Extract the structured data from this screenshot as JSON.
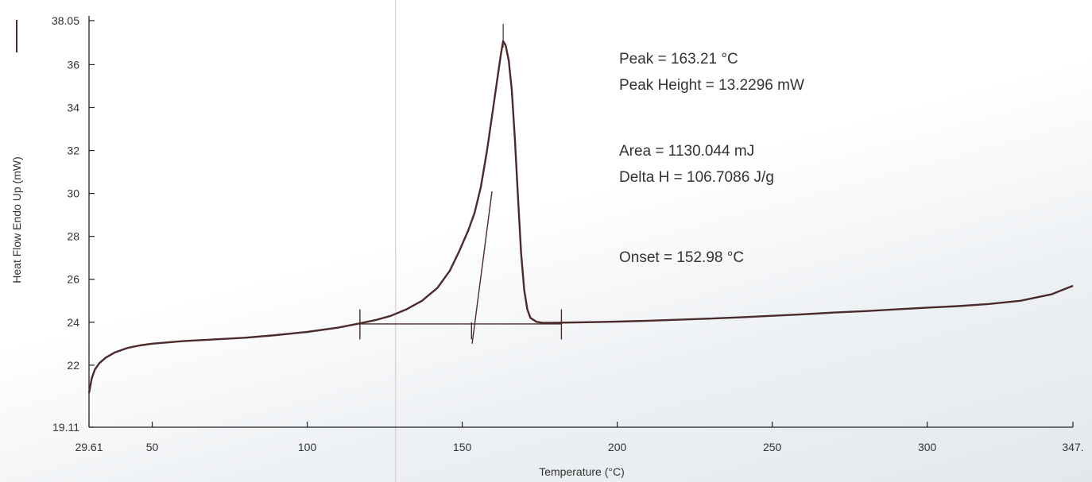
{
  "chart_data": {
    "type": "line",
    "xlabel": "Temperature (°C)",
    "ylabel": "Heat Flow Endo Up (mW)",
    "xlim": [
      29.61,
      347
    ],
    "ylim": [
      19.11,
      38.05
    ],
    "x_ticks": [
      {
        "value": 29.61,
        "label": "29.61"
      },
      {
        "value": 50,
        "label": "50"
      },
      {
        "value": 100,
        "label": "100"
      },
      {
        "value": 150,
        "label": "150"
      },
      {
        "value": 200,
        "label": "200"
      },
      {
        "value": 250,
        "label": "250"
      },
      {
        "value": 300,
        "label": "300"
      },
      {
        "value": 347,
        "label": "347."
      }
    ],
    "y_ticks": [
      {
        "value": 19.11,
        "label": "19.11"
      },
      {
        "value": 22,
        "label": "22"
      },
      {
        "value": 24,
        "label": "24"
      },
      {
        "value": 26,
        "label": "26"
      },
      {
        "value": 28,
        "label": "28"
      },
      {
        "value": 30,
        "label": "30"
      },
      {
        "value": 32,
        "label": "32"
      },
      {
        "value": 34,
        "label": "34"
      },
      {
        "value": 36,
        "label": "36"
      },
      {
        "value": 38.05,
        "label": "38.05"
      }
    ],
    "series": [
      {
        "color": "#4a2a2a",
        "points": [
          [
            29.61,
            20.7
          ],
          [
            30.5,
            21.4
          ],
          [
            31.5,
            21.8
          ],
          [
            33,
            22.1
          ],
          [
            35,
            22.35
          ],
          [
            38,
            22.6
          ],
          [
            42,
            22.8
          ],
          [
            46,
            22.92
          ],
          [
            50,
            23.0
          ],
          [
            60,
            23.12
          ],
          [
            70,
            23.2
          ],
          [
            80,
            23.28
          ],
          [
            90,
            23.4
          ],
          [
            100,
            23.55
          ],
          [
            110,
            23.75
          ],
          [
            117,
            23.95
          ],
          [
            122,
            24.1
          ],
          [
            127,
            24.3
          ],
          [
            132,
            24.6
          ],
          [
            137,
            25.0
          ],
          [
            142,
            25.6
          ],
          [
            146,
            26.4
          ],
          [
            149,
            27.3
          ],
          [
            152,
            28.3
          ],
          [
            154,
            29.1
          ],
          [
            156,
            30.3
          ],
          [
            158,
            32.0
          ],
          [
            160,
            34.0
          ],
          [
            161.5,
            35.5
          ],
          [
            162.5,
            36.5
          ],
          [
            163.21,
            37.1
          ],
          [
            164,
            36.9
          ],
          [
            165,
            36.2
          ],
          [
            166,
            34.8
          ],
          [
            167,
            32.5
          ],
          [
            168,
            29.8
          ],
          [
            169,
            27.2
          ],
          [
            170,
            25.5
          ],
          [
            171,
            24.6
          ],
          [
            172,
            24.2
          ],
          [
            174,
            24.02
          ],
          [
            176,
            23.97
          ],
          [
            180,
            23.98
          ],
          [
            190,
            24.0
          ],
          [
            200,
            24.03
          ],
          [
            210,
            24.07
          ],
          [
            220,
            24.12
          ],
          [
            230,
            24.17
          ],
          [
            240,
            24.23
          ],
          [
            250,
            24.3
          ],
          [
            260,
            24.37
          ],
          [
            270,
            24.45
          ],
          [
            280,
            24.52
          ],
          [
            290,
            24.6
          ],
          [
            300,
            24.68
          ],
          [
            310,
            24.75
          ],
          [
            320,
            24.85
          ],
          [
            330,
            25.0
          ],
          [
            340,
            25.3
          ],
          [
            347,
            25.7
          ]
        ]
      }
    ],
    "baseline": {
      "x1": 117,
      "y1": 23.92,
      "x2": 182,
      "y2": 23.92
    },
    "onset_tangent": {
      "x1": 153.2,
      "y1": 23.0,
      "x2": 159.6,
      "y2": 30.1
    },
    "peak_line": {
      "x1": 163.21,
      "y1": 37.9,
      "x2": 163.21,
      "y2": 36.8
    },
    "markers": [
      {
        "name": "integration-start-marker",
        "x": 117,
        "y_low": 23.2,
        "y_high": 24.6
      },
      {
        "name": "onset-marker",
        "x": 153,
        "y_low": 23.2,
        "y_high": 24.0
      },
      {
        "name": "integration-end-marker",
        "x": 182,
        "y_low": 23.2,
        "y_high": 24.6
      }
    ],
    "annotations": {
      "peak": "Peak = 163.21 °C",
      "peak_height": "Peak Height = 13.2296 mW",
      "area": "Area = 1130.044 mJ",
      "delta_h": "Delta H = 106.7086 J/g",
      "onset": "Onset = 152.98 °C"
    },
    "grid": false,
    "line_color": "#4a2a2a",
    "axis_color": "#222222",
    "cursor_color": "#f0c4c8",
    "cursor_x": 128.5
  }
}
